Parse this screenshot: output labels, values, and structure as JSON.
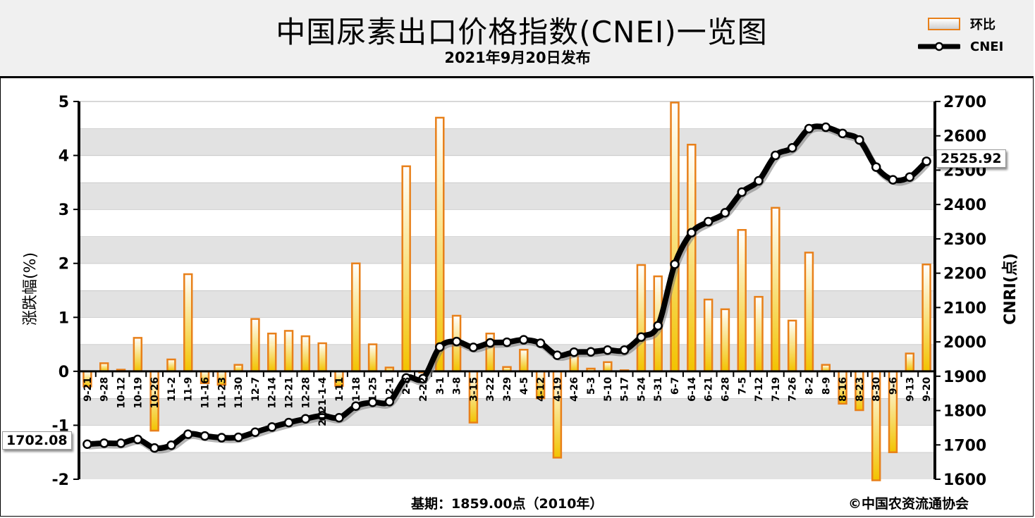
{
  "header": {
    "title": "中国尿素出口价格指数(CNEI)一览图",
    "subtitle": "2021年9月20日发布"
  },
  "legend": {
    "bar_label": "环比",
    "line_label": "CNEI"
  },
  "footer": {
    "base_period": "基期：1859.00点（2010年）",
    "copyright": "©中国农资流通协会"
  },
  "tags": {
    "first_value": "1702.08",
    "last_value": "2525.92"
  },
  "colors": {
    "bar_stroke": "#e8801a",
    "bar_fill_top": "#ffffff",
    "bar_fill_bottom": "#f2c300",
    "line": "#000000",
    "grid_band": "#e2e2e2"
  },
  "chart_data": {
    "type": "bar",
    "categories": [
      "9-21",
      "9-28",
      "10-12",
      "10-19",
      "10-26",
      "11-2",
      "11-9",
      "11-16",
      "11-23",
      "11-30",
      "12-7",
      "12-14",
      "12-21",
      "12-28",
      "2021-1-4",
      "1-11",
      "1-18",
      "1-25",
      "2-1",
      "2-8",
      "2-22",
      "3-1",
      "3-8",
      "3-15",
      "3-22",
      "3-29",
      "4-5",
      "4-12",
      "4-19",
      "4-26",
      "5-3",
      "5-10",
      "5-17",
      "5-24",
      "5-31",
      "6-7",
      "6-14",
      "6-21",
      "6-28",
      "7-5",
      "7-12",
      "7-19",
      "7-26",
      "8-2",
      "8-9",
      "8-16",
      "8-23",
      "8-30",
      "9-6",
      "9-13",
      "9-20"
    ],
    "category_labels": [
      "9-21",
      "9-28",
      "10-12",
      "10-19",
      "10-26",
      "11-2",
      "11-9",
      "11-16",
      "11-23",
      "11-30",
      "12-7",
      "12-14",
      "12-21",
      "12-28",
      "2021-1-4",
      "1-11",
      "1-18",
      "1-25",
      "2-1",
      "2-8",
      "2-22",
      "3-1",
      "3-8",
      "3-15",
      "3-22",
      "3-29",
      "4-5",
      "4-12",
      "4-19",
      "4-26",
      "5-3",
      "5-10",
      "5-17",
      "5-24",
      "5-31",
      "6-7",
      "6-14",
      "6-21",
      "6-28",
      "7-5",
      "7-12",
      "7-19",
      "7-26",
      "8-2",
      "8-9",
      "8-16",
      "8-23",
      "8-30",
      "9-6",
      "9-13",
      "9-20"
    ],
    "series": [
      {
        "name": "环比",
        "type": "bar",
        "axis": "left",
        "values": [
          -0.28,
          0.15,
          0.03,
          0.62,
          -1.1,
          0.22,
          1.8,
          -0.22,
          -0.25,
          0.12,
          0.97,
          0.7,
          0.75,
          0.65,
          0.52,
          -0.27,
          2.0,
          0.5,
          0.07,
          3.8,
          -0.02,
          4.7,
          1.03,
          -0.95,
          0.7,
          0.08,
          0.4,
          -0.5,
          -1.6,
          0.3,
          0.05,
          0.17,
          0.02,
          1.97,
          1.76,
          4.98,
          4.2,
          1.33,
          1.15,
          2.62,
          1.38,
          3.03,
          0.94,
          2.2,
          0.12,
          -0.6,
          -0.72,
          -2.02,
          -1.5,
          0.33,
          1.98
        ]
      },
      {
        "name": "CNEI",
        "type": "line",
        "axis": "right",
        "values": [
          1702.08,
          1705,
          1705,
          1716,
          1691,
          1699,
          1731,
          1726,
          1721,
          1722,
          1737,
          1752,
          1765,
          1776,
          1785,
          1779,
          1813,
          1824,
          1826,
          1895,
          1893,
          1985,
          2001,
          1984,
          1997,
          1999,
          2006,
          1996,
          1961,
          1970,
          1971,
          1976,
          1976,
          2014,
          2047,
          2226,
          2318,
          2350,
          2376,
          2436,
          2469,
          2543,
          2565,
          2621,
          2625,
          2607,
          2588,
          2509,
          2472,
          2480,
          2525.92
        ]
      }
    ],
    "title": "中国尿素出口价格指数(CNEI)一览图",
    "ylabel": "涨跌幅(%)",
    "y2label": "CNRI(点)",
    "ylim": [
      -2,
      5
    ],
    "y2lim": [
      1600,
      2700
    ],
    "yticks": [
      "-2",
      "-1",
      "0",
      "1",
      "2",
      "3",
      "4",
      "5"
    ],
    "y2ticks": [
      "1600",
      "1700",
      "1800",
      "1900",
      "2000",
      "2100",
      "2200",
      "2300",
      "2400",
      "2500",
      "2600",
      "2700"
    ],
    "grid": true,
    "legend_position": "top-right"
  }
}
